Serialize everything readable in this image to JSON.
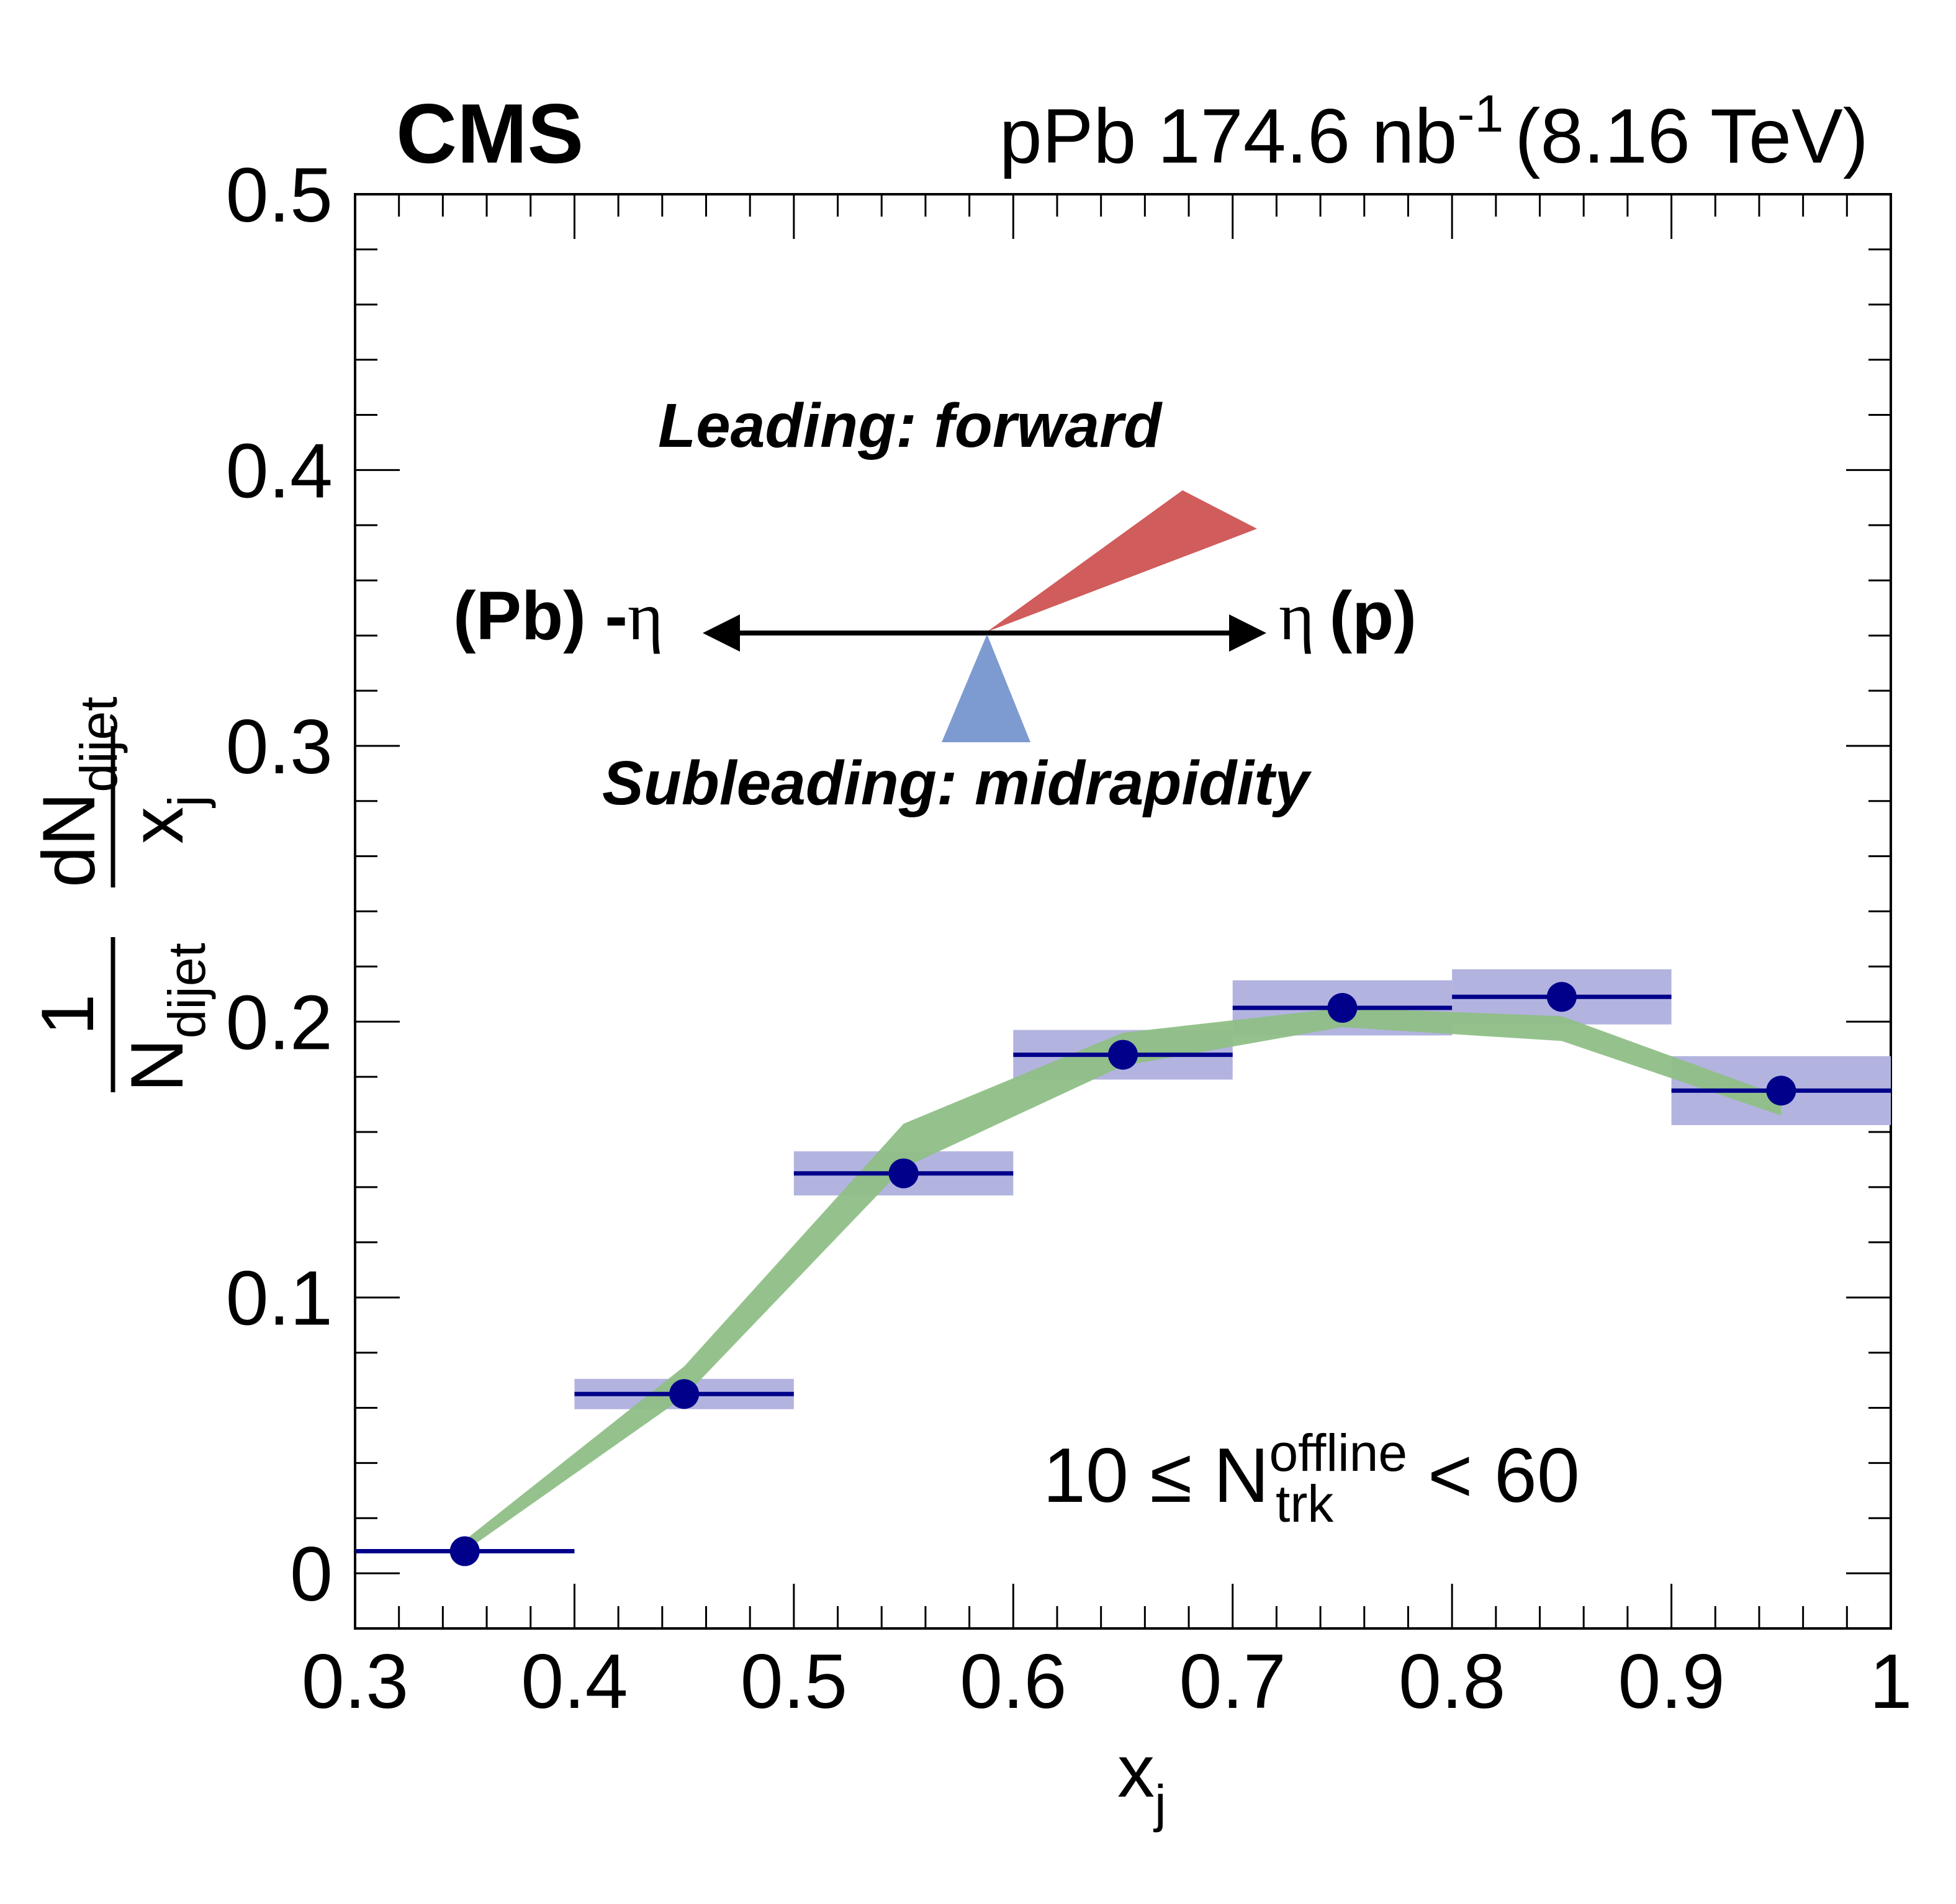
{
  "header": {
    "experiment": "CMS",
    "lumi_prefix": "pPb 174.6 nb",
    "lumi_exp": "-1",
    "energy": "(8.16 TeV)"
  },
  "annotations": {
    "leading": "Leading: forward",
    "subleading": "Subleading: midrapidity",
    "left_end_bold": "(Pb) -",
    "left_end_symbol": "η",
    "right_end_symbol": "η",
    "right_end_bold": "(p)",
    "leading_color": "#d05c5c",
    "subleading_color": "#7e9bd1",
    "selection": {
      "prefix": "10 ≤ N",
      "sup": "offline",
      "sub": "trk",
      "suffix": "< 60"
    }
  },
  "chart_data": {
    "type": "scatter",
    "xlim": [
      0.3,
      1.0
    ],
    "ylim": [
      -0.02,
      0.5
    ],
    "xticks": [
      "0.3",
      "0.4",
      "0.5",
      "0.6",
      "0.7",
      "0.8",
      "0.9",
      "1"
    ],
    "yticks": [
      "0",
      "0.1",
      "0.2",
      "0.3",
      "0.4",
      "0.5"
    ],
    "xlabel": {
      "main": "x",
      "sub": "j"
    },
    "ylabel": {
      "one": "1",
      "den": {
        "main": "N",
        "sub": "dijet"
      },
      "num": {
        "main": "dN",
        "sub": "dijet"
      },
      "num_den": {
        "main": "x",
        "sub": "j"
      }
    },
    "grid": false,
    "series": [
      {
        "style": "markers",
        "color": "#00008b",
        "sys_color": "#b3b3e0",
        "points": [
          {
            "x": 0.35,
            "xlow": 0.3,
            "xhigh": 0.4,
            "y": 0.008,
            "sys": null
          },
          {
            "x": 0.45,
            "xlow": 0.4,
            "xhigh": 0.5,
            "y": 0.065,
            "sys": 0.0055
          },
          {
            "x": 0.55,
            "xlow": 0.5,
            "xhigh": 0.6,
            "y": 0.145,
            "sys": 0.008
          },
          {
            "x": 0.65,
            "xlow": 0.6,
            "xhigh": 0.7,
            "y": 0.188,
            "sys": 0.009
          },
          {
            "x": 0.75,
            "xlow": 0.7,
            "xhigh": 0.8,
            "y": 0.205,
            "sys": 0.01
          },
          {
            "x": 0.85,
            "xlow": 0.8,
            "xhigh": 0.9,
            "y": 0.209,
            "sys": 0.01
          },
          {
            "x": 0.95,
            "xlow": 0.9,
            "xhigh": 1.0,
            "y": 0.175,
            "sys": 0.0125
          }
        ]
      },
      {
        "style": "band",
        "color": "#8fbf86",
        "band": {
          "x": [
            0.35,
            0.45,
            0.55,
            0.65,
            0.75,
            0.85,
            0.95
          ],
          "low": [
            0.008,
            0.064,
            0.147,
            0.184,
            0.198,
            0.193,
            0.166
          ],
          "high": [
            0.012,
            0.075,
            0.163,
            0.196,
            0.205,
            0.202,
            0.173
          ]
        }
      }
    ]
  }
}
